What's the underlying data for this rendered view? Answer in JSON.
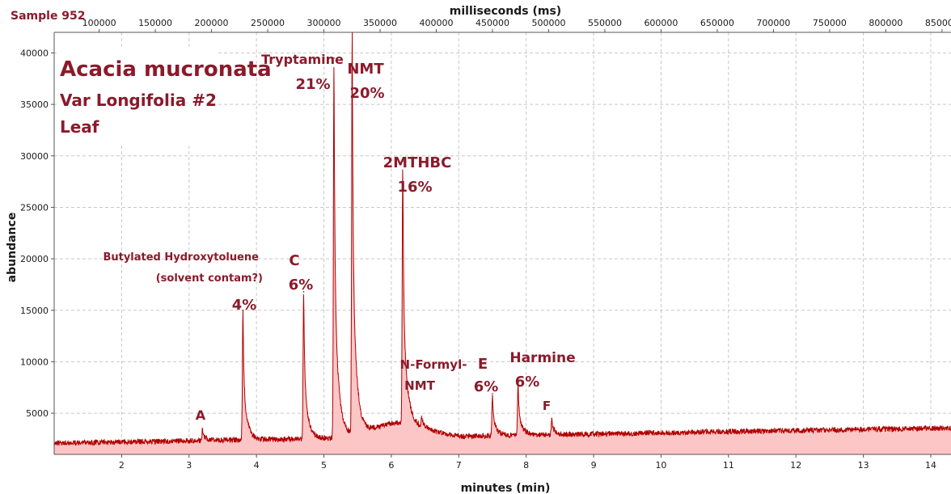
{
  "colors": {
    "trace": "#b00000",
    "fill": "#fcc6c6",
    "annotation": "#8b1a2b",
    "grid": "#c8c8c8",
    "axis": "#555555"
  },
  "chart_data": {
    "type": "line",
    "sample_label": "Sample 952",
    "title_lines": [
      "Acacia mucronata",
      "Var Longifolia  #2",
      "Leaf"
    ],
    "xlabel": "minutes (min)",
    "x2label": "milliseconds (ms)",
    "ylabel": "abundance",
    "xlim": [
      1.0,
      14.3
    ],
    "ylim": [
      1000,
      42000
    ],
    "x_ticks": [
      2,
      3,
      4,
      5,
      6,
      7,
      8,
      9,
      10,
      11,
      12,
      13,
      14
    ],
    "x2_ticks": [
      100000,
      150000,
      200000,
      250000,
      300000,
      350000,
      400000,
      450000,
      500000,
      550000,
      600000,
      650000,
      700000,
      750000,
      800000,
      850000
    ],
    "y_ticks": [
      5000,
      10000,
      15000,
      20000,
      25000,
      30000,
      35000,
      40000
    ],
    "grid": true,
    "peaks": [
      {
        "name": "A",
        "x": 3.2,
        "y": 3500
      },
      {
        "name": "Butylated Hydroxytoluene",
        "x": 3.8,
        "y": 15000
      },
      {
        "name": "C",
        "x": 4.7,
        "y": 16800
      },
      {
        "name": "Tryptamine",
        "x": 5.15,
        "y": 39500
      },
      {
        "name": "NMT",
        "x": 5.42,
        "y": 42000
      },
      {
        "name": "2MTHBC",
        "x": 6.17,
        "y": 29500
      },
      {
        "name": "N-Formyl-NMT",
        "x": 6.45,
        "y": 4700
      },
      {
        "name": "E",
        "x": 7.5,
        "y": 6900
      },
      {
        "name": "Harmine",
        "x": 7.88,
        "y": 7900
      },
      {
        "name": "F",
        "x": 8.38,
        "y": 4500
      }
    ],
    "annotations": [
      {
        "id": "A",
        "lines": [
          "A"
        ]
      },
      {
        "id": "bht",
        "lines": [
          "Butylated Hydroxytoluene",
          "(solvent contam?)",
          "4%"
        ]
      },
      {
        "id": "C",
        "lines": [
          "C",
          "6%"
        ]
      },
      {
        "id": "tryptamine",
        "lines": [
          "Tryptamine",
          "21%"
        ]
      },
      {
        "id": "nmt",
        "lines": [
          "NMT",
          "20%"
        ]
      },
      {
        "id": "mthbc",
        "lines": [
          "2MTHBC",
          "16%"
        ]
      },
      {
        "id": "formyl",
        "lines": [
          "N-Formyl-",
          "NMT"
        ]
      },
      {
        "id": "E",
        "lines": [
          "E",
          "6%"
        ]
      },
      {
        "id": "harmine",
        "lines": [
          "Harmine",
          "6%"
        ]
      },
      {
        "id": "F",
        "lines": [
          "F"
        ]
      }
    ]
  }
}
